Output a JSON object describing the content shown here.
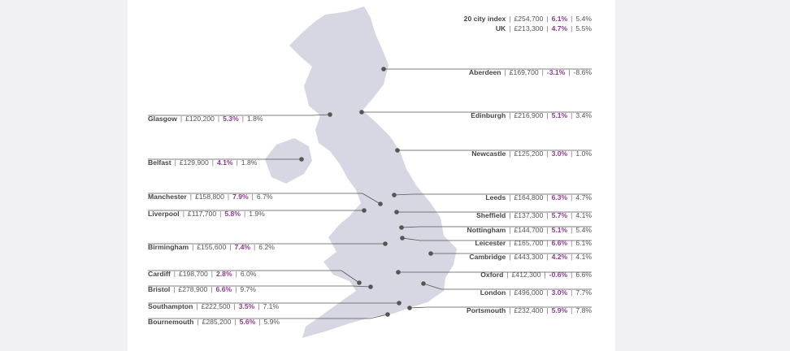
{
  "separator": "|",
  "summary": [
    {
      "name": "20 city index",
      "price": "£254,700",
      "growth_1": "6.1%",
      "growth_2": "5.4%"
    },
    {
      "name": "UK",
      "price": "£213,300",
      "growth_1": "4.7%",
      "growth_2": "5.5%"
    }
  ],
  "cities": [
    {
      "name": "Aberdeen",
      "price": "£169,700",
      "growth_1": "-3.1%",
      "growth_2": "-8.6%"
    },
    {
      "name": "Glasgow",
      "price": "£120,200",
      "growth_1": "5.3%",
      "growth_2": "1.8%"
    },
    {
      "name": "Edinburgh",
      "price": "£216,900",
      "growth_1": "5.1%",
      "growth_2": "3.4%"
    },
    {
      "name": "Newcastle",
      "price": "£125,200",
      "growth_1": "3.0%",
      "growth_2": "1.0%"
    },
    {
      "name": "Belfast",
      "price": "£129,900",
      "growth_1": "4.1%",
      "growth_2": "1.8%"
    },
    {
      "name": "Manchester",
      "price": "£158,800",
      "growth_1": "7.9%",
      "growth_2": "6.7%"
    },
    {
      "name": "Leeds",
      "price": "£164,800",
      "growth_1": "6.3%",
      "growth_2": "4.7%"
    },
    {
      "name": "Liverpool",
      "price": "£117,700",
      "growth_1": "5.8%",
      "growth_2": "1.9%"
    },
    {
      "name": "Sheffield",
      "price": "£137,300",
      "growth_1": "5.7%",
      "growth_2": "4.1%"
    },
    {
      "name": "Nottingham",
      "price": "£144,700",
      "growth_1": "5.1%",
      "growth_2": "5.4%"
    },
    {
      "name": "Leicester",
      "price": "£165,700",
      "growth_1": "6.6%",
      "growth_2": "6.1%"
    },
    {
      "name": "Birmingham",
      "price": "£155,600",
      "growth_1": "7.4%",
      "growth_2": "6.2%"
    },
    {
      "name": "Cambridge",
      "price": "£443,300",
      "growth_1": "4.2%",
      "growth_2": "4.1%"
    },
    {
      "name": "Cardiff",
      "price": "£198,700",
      "growth_1": "2.8%",
      "growth_2": "6.0%"
    },
    {
      "name": "Oxford",
      "price": "£412,300",
      "growth_1": "-0.6%",
      "growth_2": "6.6%"
    },
    {
      "name": "Bristol",
      "price": "£278,900",
      "growth_1": "6.6%",
      "growth_2": "9.7%"
    },
    {
      "name": "London",
      "price": "£496,000",
      "growth_1": "3.0%",
      "growth_2": "7.7%"
    },
    {
      "name": "Southampton",
      "price": "£222,500",
      "growth_1": "3.5%",
      "growth_2": "7.1%"
    },
    {
      "name": "Portsmouth",
      "price": "£232,400",
      "growth_1": "5.9%",
      "growth_2": "7.8%"
    },
    {
      "name": "Bournemouth",
      "price": "£285,200",
      "growth_1": "5.6%",
      "growth_2": "5.9%"
    }
  ]
}
